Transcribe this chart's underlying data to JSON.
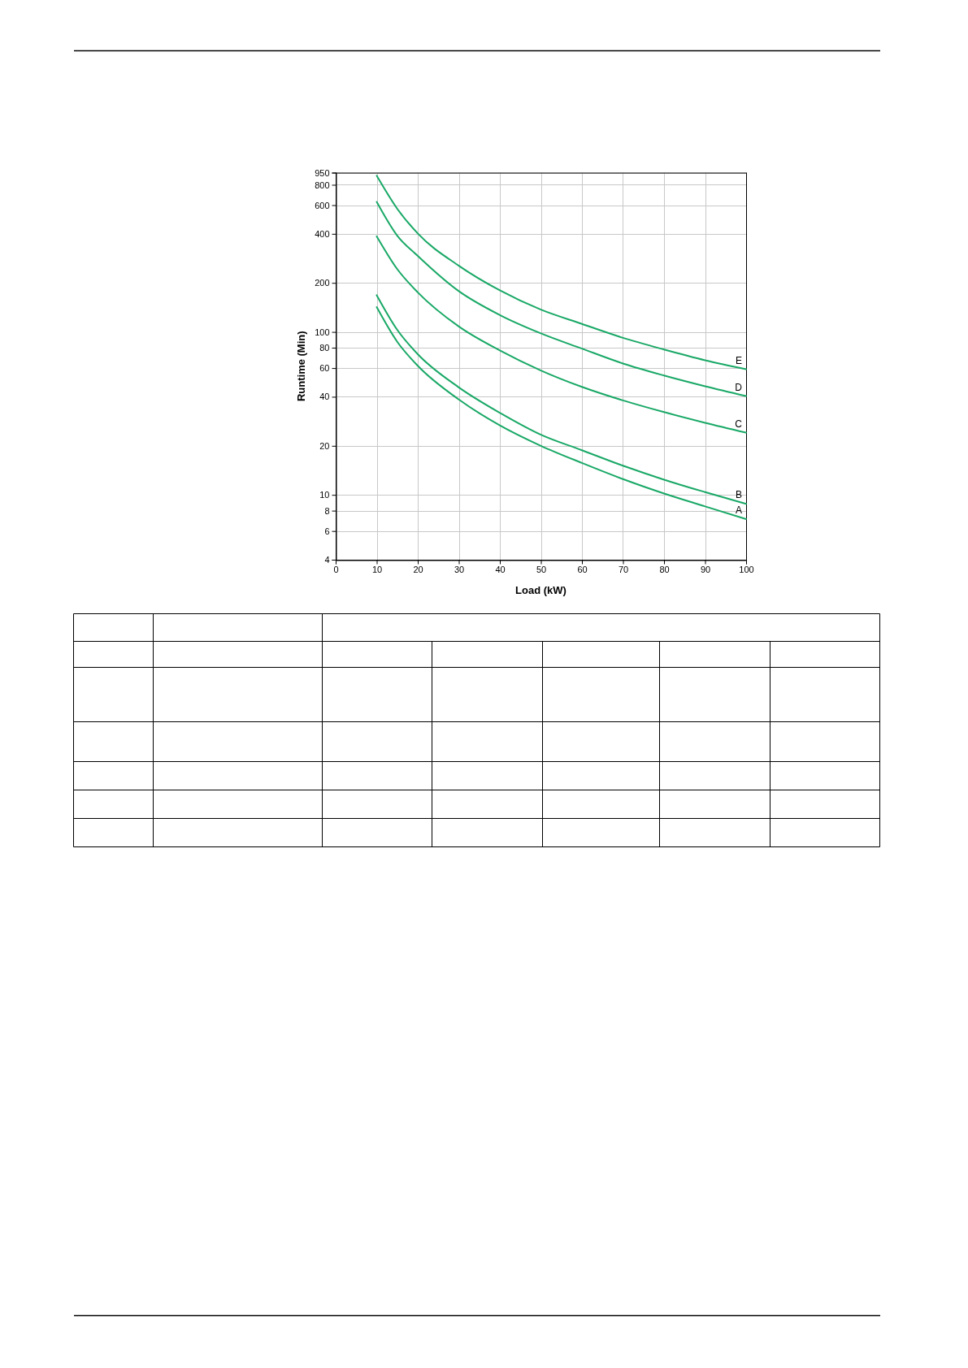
{
  "chart_data": {
    "type": "line",
    "xlabel": "Load (kW)",
    "ylabel": "Runtime (Min)",
    "x": [
      10,
      15,
      20,
      30,
      40,
      50,
      60,
      70,
      80,
      90,
      100
    ],
    "series": [
      {
        "name": "A",
        "color": "#19a866",
        "values": [
          142,
          87,
          62,
          38.5,
          26.7,
          20,
          15.7,
          12.5,
          10.2,
          8.5,
          7.1
        ]
      },
      {
        "name": "B",
        "color": "#19a866",
        "values": [
          168,
          103,
          73,
          45.7,
          31.9,
          23.4,
          18.8,
          15.1,
          12.4,
          10.4,
          8.8
        ]
      },
      {
        "name": "C",
        "color": "#19a866",
        "values": [
          386,
          243,
          175,
          108,
          77,
          58,
          46,
          38,
          32.2,
          27.7,
          24.1
        ]
      },
      {
        "name": "D",
        "color": "#19a866",
        "values": [
          628,
          390,
          293,
          178,
          127,
          98,
          79,
          64,
          54,
          46.4,
          40.4
        ]
      },
      {
        "name": "E",
        "color": "#19a866",
        "values": [
          909,
          570,
          402,
          255,
          180,
          137,
          112,
          92,
          78,
          67,
          59
        ]
      }
    ],
    "xlim": [
      0,
      100
    ],
    "xticks": [
      0,
      10,
      20,
      30,
      40,
      50,
      60,
      70,
      80,
      90,
      100
    ],
    "ylim": [
      4,
      950
    ],
    "yticks": [
      4,
      6,
      8,
      10,
      20,
      40,
      60,
      80,
      100,
      200,
      400,
      600,
      800,
      950
    ],
    "log": true,
    "grid": true
  }
}
